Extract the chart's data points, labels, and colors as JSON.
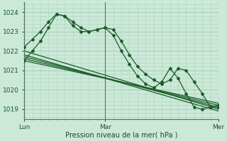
{
  "xlabel": "Pression niveau de la mer( hPa )",
  "bg_color": "#cce8d8",
  "grid_color": "#99ccb0",
  "line_color": "#1a5c28",
  "ylim": [
    1018.5,
    1024.5
  ],
  "xlim": [
    0,
    48
  ],
  "x_ticks": [
    0,
    20,
    48
  ],
  "x_tick_labels": [
    "Lun",
    "Mar",
    "Mer"
  ],
  "y_ticks": [
    1019,
    1020,
    1021,
    1022,
    1023,
    1024
  ],
  "vlines": [
    0,
    20,
    48
  ],
  "straight_lines": [
    {
      "x": [
        0,
        48
      ],
      "y": [
        1022.0,
        1019.0
      ]
    },
    {
      "x": [
        0,
        48
      ],
      "y": [
        1021.8,
        1018.9
      ]
    },
    {
      "x": [
        0,
        48
      ],
      "y": [
        1021.7,
        1019.1
      ]
    },
    {
      "x": [
        0,
        48
      ],
      "y": [
        1021.6,
        1019.2
      ]
    },
    {
      "x": [
        0,
        48
      ],
      "y": [
        1021.5,
        1019.3
      ]
    }
  ],
  "peaked_lines": [
    {
      "x": [
        0,
        2,
        4,
        6,
        8,
        10,
        12,
        14,
        16,
        18,
        20,
        22,
        24,
        26,
        28,
        30,
        32,
        34,
        36,
        38,
        40,
        42,
        44,
        46,
        48
      ],
      "y": [
        1022.2,
        1022.6,
        1023.0,
        1023.5,
        1023.9,
        1023.8,
        1023.5,
        1023.2,
        1023.0,
        1023.1,
        1023.2,
        1023.1,
        1022.5,
        1021.8,
        1021.2,
        1020.8,
        1020.5,
        1020.3,
        1020.5,
        1021.1,
        1021.0,
        1020.4,
        1019.8,
        1019.1,
        1019.1
      ]
    },
    {
      "x": [
        0,
        2,
        4,
        6,
        8,
        10,
        12,
        14,
        16,
        18,
        20,
        22,
        24,
        26,
        28,
        30,
        32,
        34,
        36,
        38,
        40,
        42,
        44,
        46,
        48
      ],
      "y": [
        1021.5,
        1022.0,
        1022.5,
        1023.2,
        1023.9,
        1023.8,
        1023.3,
        1023.0,
        1023.0,
        1023.1,
        1023.2,
        1022.8,
        1022.0,
        1021.3,
        1020.7,
        1020.3,
        1020.1,
        1020.4,
        1021.1,
        1020.6,
        1019.8,
        1019.1,
        1019.0,
        1019.1,
        1019.2
      ]
    }
  ]
}
